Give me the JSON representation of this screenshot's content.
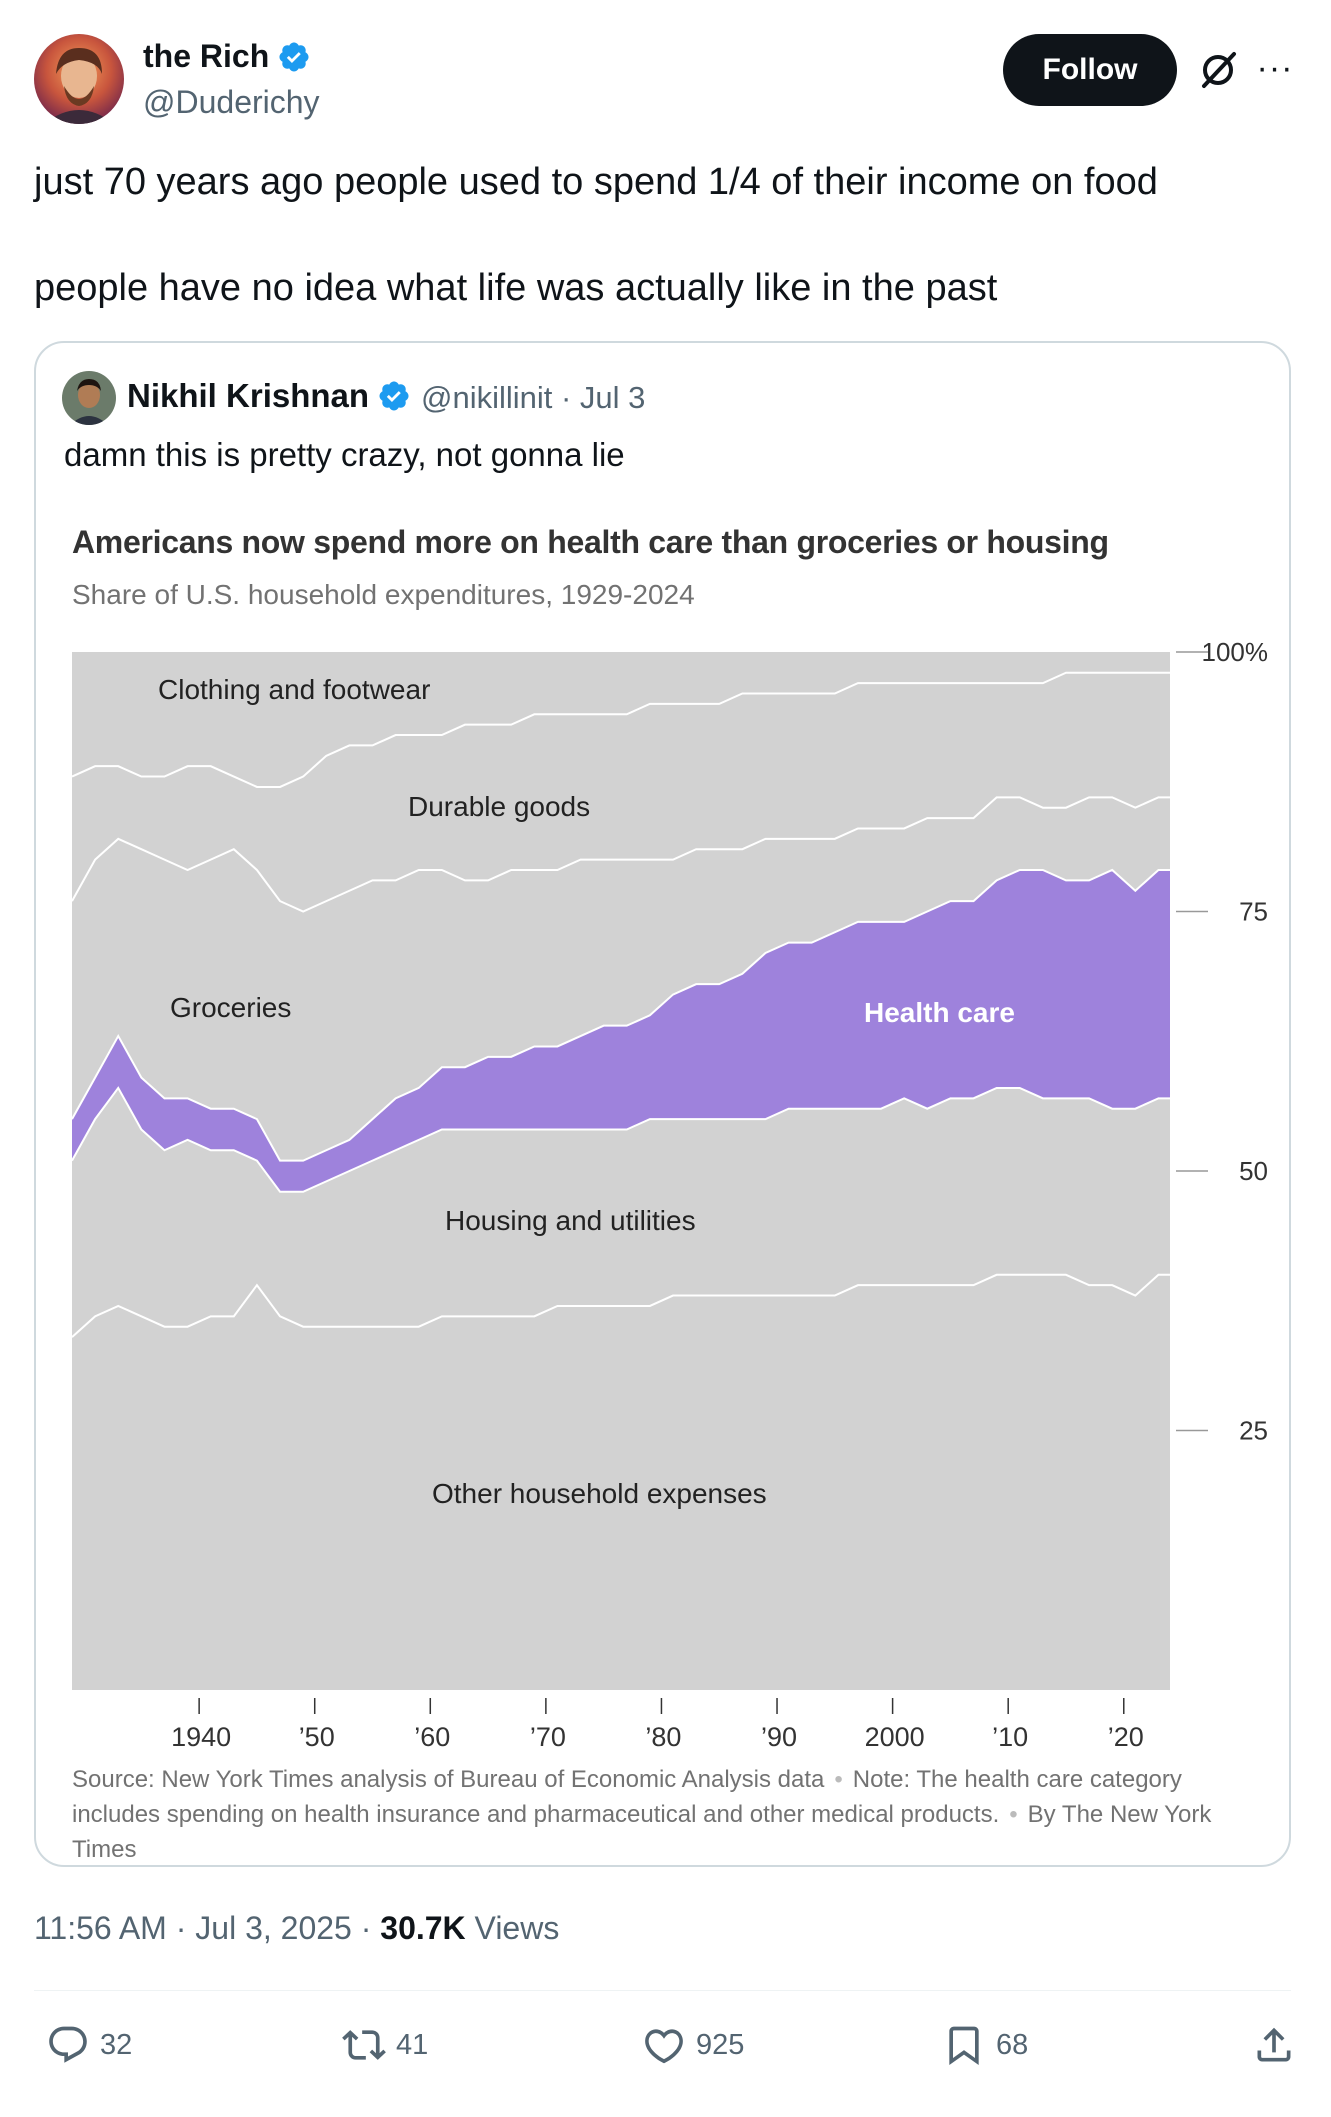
{
  "author": {
    "name": "the Rich",
    "handle": "@Duderichy",
    "verified": true
  },
  "follow_label": "Follow",
  "tweet": {
    "line1": "just 70 years ago people used to spend 1/4 of their income on food",
    "line2": "people have no idea what life was actually like in the past"
  },
  "quoted": {
    "name": "Nikhil Krishnan",
    "handle_date": "@nikillinit · Jul 3",
    "text": "damn this is pretty crazy, not gonna lie"
  },
  "chart_data": {
    "type": "area",
    "title": "Americans now spend more on health care than groceries or housing",
    "subtitle": "Share of U.S. household expenditures, 1929-2024",
    "x": [
      1929,
      1931,
      1933,
      1935,
      1937,
      1939,
      1941,
      1943,
      1945,
      1947,
      1949,
      1951,
      1953,
      1955,
      1957,
      1959,
      1961,
      1963,
      1965,
      1967,
      1969,
      1971,
      1973,
      1975,
      1977,
      1979,
      1981,
      1983,
      1985,
      1987,
      1989,
      1991,
      1993,
      1995,
      1997,
      1999,
      2001,
      2003,
      2005,
      2007,
      2009,
      2011,
      2013,
      2015,
      2017,
      2019,
      2021,
      2023,
      2024
    ],
    "xlim": [
      1929,
      2024
    ],
    "xticks": [
      1940,
      1950,
      1960,
      1970,
      1980,
      1990,
      2000,
      2010,
      2020
    ],
    "xtick_labels": [
      "1940",
      "’50",
      "’60",
      "’70",
      "’80",
      "’90",
      "2000",
      "’10",
      "’20"
    ],
    "ylim": [
      0,
      100
    ],
    "yticks": [
      25,
      50,
      75,
      100
    ],
    "ytick_labels": [
      "25",
      "50",
      "75",
      "100%"
    ],
    "series": [
      {
        "name": "Other household expenses",
        "color": "#d2d2d2",
        "top": [
          34,
          36,
          37,
          36,
          35,
          35,
          36,
          36,
          39,
          36,
          35,
          35,
          35,
          35,
          35,
          35,
          36,
          36,
          36,
          36,
          36,
          37,
          37,
          37,
          37,
          37,
          38,
          38,
          38,
          38,
          38,
          38,
          38,
          38,
          39,
          39,
          39,
          39,
          39,
          39,
          40,
          40,
          40,
          40,
          39,
          39,
          38,
          40,
          40
        ]
      },
      {
        "name": "Housing and utilities",
        "color": "#d2d2d2",
        "top": [
          51,
          55,
          58,
          54,
          52,
          53,
          52,
          52,
          51,
          48,
          48,
          49,
          50,
          51,
          52,
          53,
          54,
          54,
          54,
          54,
          54,
          54,
          54,
          54,
          54,
          55,
          55,
          55,
          55,
          55,
          55,
          56,
          56,
          56,
          56,
          56,
          57,
          56,
          57,
          57,
          58,
          58,
          57,
          57,
          57,
          56,
          56,
          57,
          57
        ]
      },
      {
        "name": "Health care",
        "color": "#9e82dc",
        "top": [
          55,
          59,
          63,
          59,
          57,
          57,
          56,
          56,
          55,
          51,
          51,
          52,
          53,
          55,
          57,
          58,
          60,
          60,
          61,
          61,
          62,
          62,
          63,
          64,
          64,
          65,
          67,
          68,
          68,
          69,
          71,
          72,
          72,
          73,
          74,
          74,
          74,
          75,
          76,
          76,
          78,
          79,
          79,
          78,
          78,
          79,
          77,
          79,
          79
        ]
      },
      {
        "name": "Groceries",
        "color": "#d2d2d2",
        "top": [
          76,
          80,
          82,
          81,
          80,
          79,
          80,
          81,
          79,
          76,
          75,
          76,
          77,
          78,
          78,
          79,
          79,
          78,
          78,
          79,
          79,
          79,
          80,
          80,
          80,
          80,
          80,
          81,
          81,
          81,
          82,
          82,
          82,
          82,
          83,
          83,
          83,
          84,
          84,
          84,
          86,
          86,
          85,
          85,
          86,
          86,
          85,
          86,
          86
        ]
      },
      {
        "name": "Durable goods",
        "color": "#d2d2d2",
        "top": [
          88,
          89,
          89,
          88,
          88,
          89,
          89,
          88,
          87,
          87,
          88,
          90,
          91,
          91,
          92,
          92,
          92,
          93,
          93,
          93,
          94,
          94,
          94,
          94,
          94,
          95,
          95,
          95,
          95,
          96,
          96,
          96,
          96,
          96,
          97,
          97,
          97,
          97,
          97,
          97,
          97,
          97,
          97,
          98,
          98,
          98,
          98,
          98,
          98
        ]
      },
      {
        "name": "Clothing and footwear",
        "color": "#d2d2d2",
        "top": [
          100,
          100,
          100,
          100,
          100,
          100,
          100,
          100,
          100,
          100,
          100,
          100,
          100,
          100,
          100,
          100,
          100,
          100,
          100,
          100,
          100,
          100,
          100,
          100,
          100,
          100,
          100,
          100,
          100,
          100,
          100,
          100,
          100,
          100,
          100,
          100,
          100,
          100,
          100,
          100,
          100,
          100,
          100,
          100,
          100,
          100,
          100,
          100,
          100
        ]
      }
    ],
    "labels": {
      "clothing": "Clothing and footwear",
      "durable": "Durable goods",
      "groceries": "Groceries",
      "health": "Health care",
      "housing": "Housing and utilities",
      "other": "Other household expenses"
    }
  },
  "source": {
    "source_text": "Source: New York Times analysis of Bureau of Economic Analysis data",
    "note_text": "Note: The health care category includes spending on health insurance and pharmaceutical and other medical products.",
    "byline": "By The New York Times"
  },
  "meta": {
    "time": "11:56 AM · Jul 3, 2025 · ",
    "views_count": "30.7K",
    "views_label": " Views"
  },
  "actions": {
    "replies": "32",
    "reposts": "41",
    "likes": "925",
    "bookmarks": "68"
  },
  "colors": {
    "verified": "#1d9bf0",
    "health": "#9e82dc",
    "area": "#d2d2d2"
  }
}
